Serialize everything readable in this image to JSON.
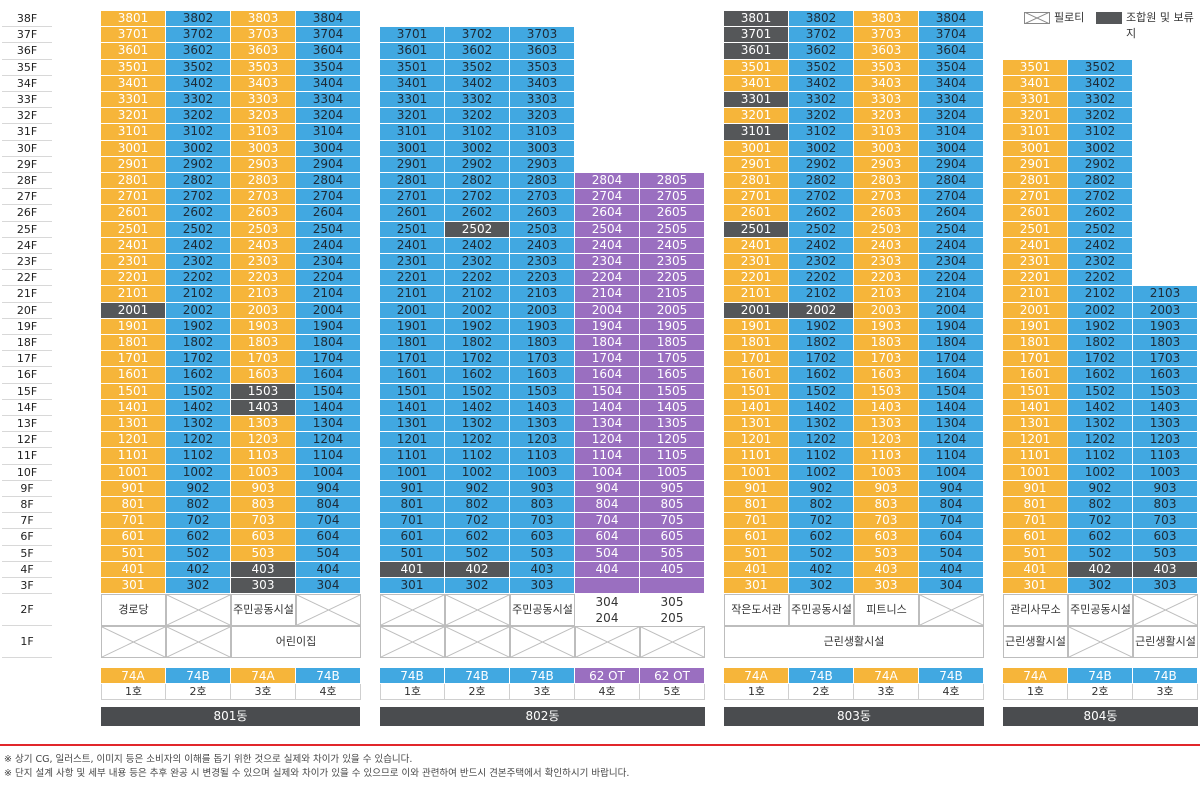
{
  "floors": [
    "38F",
    "37F",
    "36F",
    "35F",
    "34F",
    "33F",
    "32F",
    "31F",
    "30F",
    "29F",
    "28F",
    "27F",
    "26F",
    "25F",
    "24F",
    "23F",
    "22F",
    "21F",
    "20F",
    "19F",
    "18F",
    "17F",
    "16F",
    "15F",
    "14F",
    "13F",
    "12F",
    "11F",
    "10F",
    "9F",
    "8F",
    "7F",
    "6F",
    "5F",
    "4F",
    "3F",
    "2F",
    "1F"
  ],
  "legend": {
    "piloti": "필로티",
    "member_label": "조합원 및 보류지"
  },
  "colors": {
    "orange": "#f6b53a",
    "blue": "#41a8e1",
    "purple": "#9a6fc0",
    "gray": "#555759",
    "line_red": "#e1262b"
  },
  "buildings": [
    {
      "name": "801동",
      "top_floor": 38,
      "columns": [
        {
          "line": 1,
          "type": "74A",
          "ho": "1호",
          "color": "orange"
        },
        {
          "line": 2,
          "type": "74B",
          "ho": "2호",
          "color": "blue"
        },
        {
          "line": 3,
          "type": "74A",
          "ho": "3호",
          "color": "orange"
        },
        {
          "line": 4,
          "type": "74B",
          "ho": "4호",
          "color": "blue"
        }
      ],
      "members": [
        "2001",
        "1503",
        "1403",
        "403",
        "303"
      ],
      "floor2": [
        {
          "label": "경로당",
          "span": 1
        },
        {
          "label": "",
          "span": 1
        },
        {
          "label": "주민공동시설",
          "span": 1
        },
        {
          "label": "",
          "span": 1
        }
      ],
      "floor1": [
        {
          "label": "",
          "span": 1
        },
        {
          "label": "",
          "span": 1
        },
        {
          "label": "어린이집",
          "span": 2
        }
      ]
    },
    {
      "name": "802동",
      "top_floor": 37,
      "columns": [
        {
          "line": 1,
          "type": "74B",
          "ho": "1호",
          "color": "blue"
        },
        {
          "line": 2,
          "type": "74B",
          "ho": "2호",
          "color": "blue"
        },
        {
          "line": 3,
          "type": "74B",
          "ho": "3호",
          "color": "blue"
        },
        {
          "line": 4,
          "type": "62 OT",
          "ho": "4호",
          "color": "purple"
        },
        {
          "line": 5,
          "type": "62 OT",
          "ho": "5호",
          "color": "purple"
        }
      ],
      "members": [
        "2502",
        "401",
        "402"
      ],
      "floor2": [
        {
          "label": "",
          "span": 1
        },
        {
          "label": "",
          "span": 1
        },
        {
          "label": "주민공동시설",
          "span": 1
        },
        {
          "label": "304 / 204",
          "span": 1
        },
        {
          "label": "305 / 205",
          "span": 1
        }
      ],
      "floor1": [
        {
          "label": "",
          "span": 1
        },
        {
          "label": "",
          "span": 1
        },
        {
          "label": "",
          "span": 1
        },
        {
          "label": "",
          "span": 1
        },
        {
          "label": "",
          "span": 1
        }
      ]
    },
    {
      "name": "803동",
      "top_floor": 38,
      "columns": [
        {
          "line": 1,
          "type": "74A",
          "ho": "1호",
          "color": "orange"
        },
        {
          "line": 2,
          "type": "74B",
          "ho": "2호",
          "color": "blue"
        },
        {
          "line": 3,
          "type": "74A",
          "ho": "3호",
          "color": "orange"
        },
        {
          "line": 4,
          "type": "74B",
          "ho": "4호",
          "color": "blue"
        }
      ],
      "members": [
        "3801",
        "3701",
        "3601",
        "3301",
        "3101",
        "2501",
        "2001",
        "2002"
      ],
      "floor2": [
        {
          "label": "작은도서관",
          "span": 1
        },
        {
          "label": "주민공동시설",
          "span": 1
        },
        {
          "label": "피트니스",
          "span": 1
        },
        {
          "label": "",
          "span": 1
        }
      ],
      "floor1": [
        {
          "label": "근린생활시설",
          "span": 4
        }
      ]
    },
    {
      "name": "804동",
      "top_floor": 35,
      "columns": [
        {
          "line": 1,
          "type": "74A",
          "ho": "1호",
          "color": "orange",
          "top": 35
        },
        {
          "line": 2,
          "type": "74B",
          "ho": "2호",
          "color": "blue",
          "top": 35
        },
        {
          "line": 3,
          "type": "74B",
          "ho": "3호",
          "color": "blue",
          "top": 21
        }
      ],
      "members": [
        "402",
        "403"
      ],
      "floor2": [
        {
          "label": "관리사무소",
          "span": 1
        },
        {
          "label": "주민공동시설",
          "span": 1
        },
        {
          "label": "",
          "span": 1
        }
      ],
      "floor1": [
        {
          "label": "근린생활시설",
          "span": 1
        },
        {
          "label": "",
          "span": 1
        },
        {
          "label": "근린생활시설",
          "span": 1
        }
      ]
    }
  ],
  "purple_units": {
    "floors_top": 28,
    "floors_bottom": 3,
    "col4": [
      "2804",
      "2704",
      "2604",
      "2504",
      "2404",
      "2304",
      "2204",
      "2104",
      "2004",
      "1904",
      "1804",
      "1704",
      "1604",
      "1504",
      "1404",
      "1304",
      "1204",
      "1104",
      "1004",
      "904",
      "804",
      "704",
      "604",
      "504",
      "404"
    ],
    "col5": [
      "2805",
      "2705",
      "2605",
      "2505",
      "2405",
      "2305",
      "2205",
      "2105",
      "2005",
      "1905",
      "1805",
      "1705",
      "1605",
      "1505",
      "1405",
      "1305",
      "1205",
      "1105",
      "1005",
      "905",
      "805",
      "705",
      "605",
      "505",
      "405"
    ]
  },
  "notes": [
    "※ 상기 CG, 일러스트, 이미지 등은 소비자의 이해를 돕기 위한 것으로 실제와 차이가 있을 수 있습니다.",
    "※ 단지 설계 사항 및 세부 내용 등은 추후 완공 시 변경될 수 있으며 실제와 차이가 있을 수 있으므로 이와 관련하여 반드시 견본주택에서 확인하시기 바랍니다."
  ]
}
